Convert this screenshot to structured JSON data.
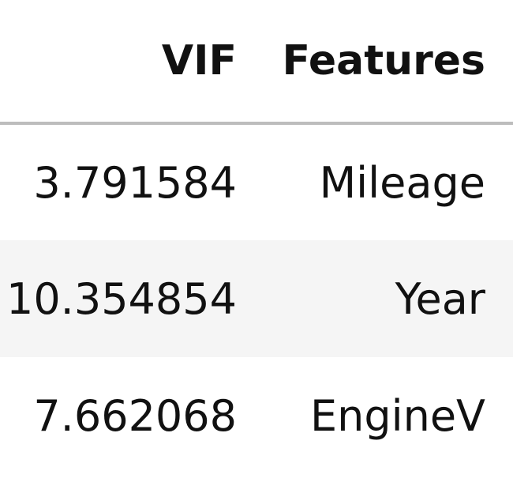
{
  "table": {
    "columns": [
      "VIF",
      "Features"
    ],
    "rows": [
      {
        "vif": "3.791584",
        "feature": "Mileage"
      },
      {
        "vif": "10.354854",
        "feature": "Year"
      },
      {
        "vif": "7.662068",
        "feature": "EngineV"
      }
    ]
  },
  "colors": {
    "stripe": "#f5f5f5",
    "header_rule": "#bdbdbd",
    "text": "#111111"
  }
}
